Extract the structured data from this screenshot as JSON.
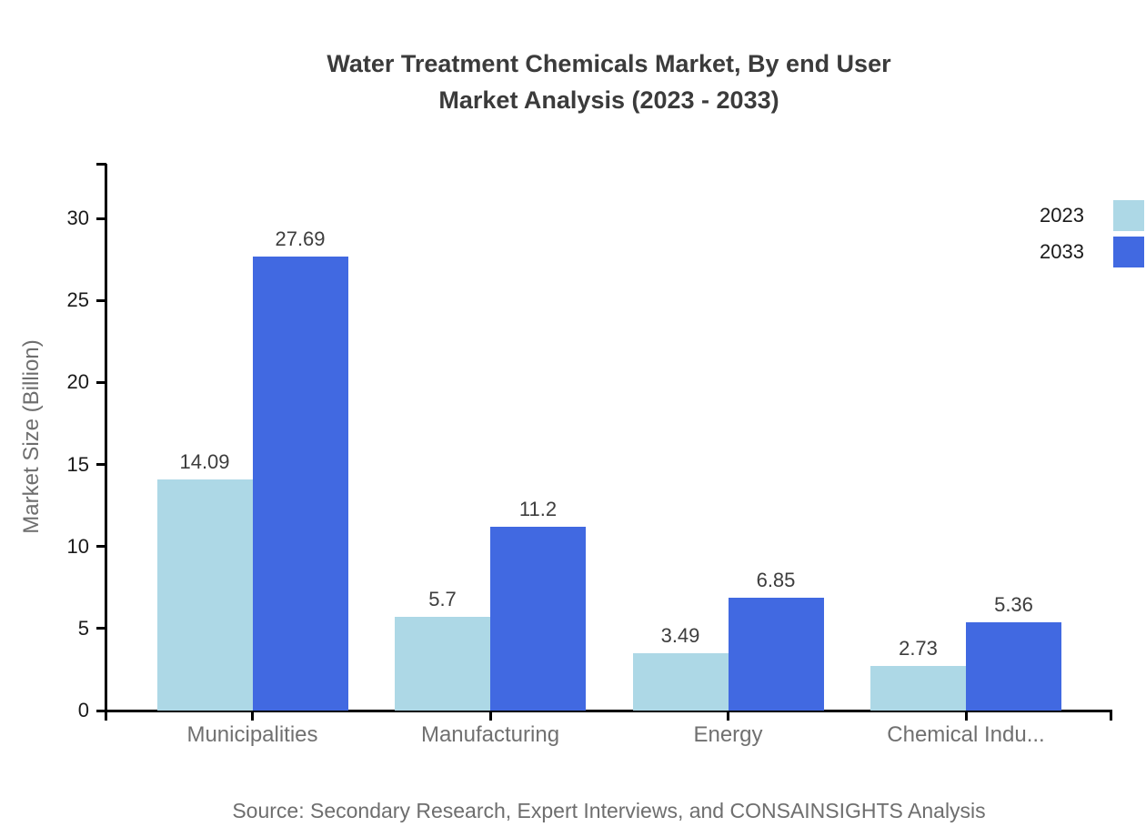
{
  "title": {
    "line1": "Water Treatment Chemicals Market, By end User",
    "line2": "Market Analysis (2023 - 2033)"
  },
  "source": "Source: Secondary Research, Expert Interviews, and CONSAINSIGHTS Analysis",
  "colors": {
    "series_2023": "#add8e6",
    "series_2033": "#4169e1",
    "axis": "#000000",
    "title_text": "#3b3b3b",
    "value_label_text": "#3d3d3d",
    "muted_text": "#6e6e6e"
  },
  "chart_data": {
    "type": "bar",
    "title": "Water Treatment Chemicals Market, By end User Market Analysis (2023 - 2033)",
    "xlabel": "",
    "ylabel": "Market Size (Billion)",
    "categories": [
      "Municipalities",
      "Manufacturing",
      "Energy",
      "Chemical Indu..."
    ],
    "series": [
      {
        "name": "2023",
        "color": "#add8e6",
        "values": [
          14.09,
          5.7,
          3.49,
          2.73
        ],
        "value_labels": [
          "14.09",
          "5.7",
          "3.49",
          "2.73"
        ]
      },
      {
        "name": "2033",
        "color": "#4169e1",
        "values": [
          27.69,
          11.2,
          6.85,
          5.36
        ],
        "value_labels": [
          "27.69",
          "11.2",
          "6.85",
          "5.36"
        ]
      }
    ],
    "yticks": [
      0,
      5,
      10,
      15,
      20,
      25,
      30
    ],
    "ylim": [
      0,
      33.3
    ],
    "grid": false,
    "legend_position": "top-right",
    "legend_entries": [
      "2023",
      "2033"
    ]
  }
}
